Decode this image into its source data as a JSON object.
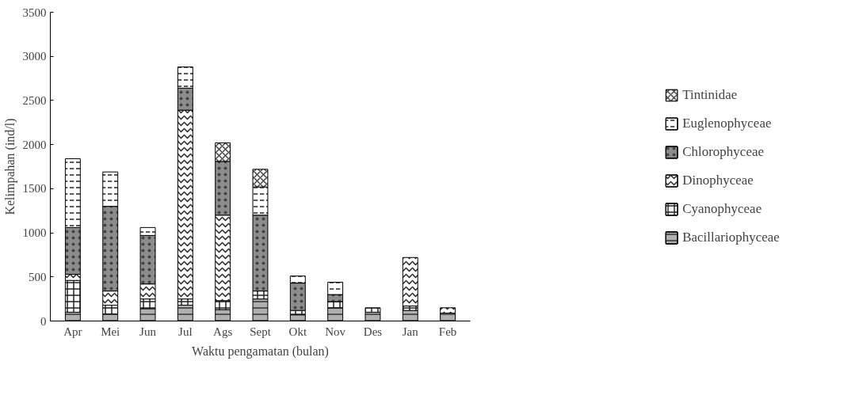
{
  "chart_data": {
    "type": "bar",
    "stacked": true,
    "xlabel": "Waktu pengamatan (bulan)",
    "ylabel": "Kelimpahan (ind/l)",
    "categories": [
      "Apr",
      "Mei",
      "Jun",
      "Jul",
      "Ags",
      "Sept",
      "Okt",
      "Nov",
      "Des",
      "Jan",
      "Feb"
    ],
    "series": [
      {
        "name": "Bacillariophyceae",
        "color": "#b0b0b0",
        "values": [
          100,
          80,
          140,
          180,
          130,
          250,
          70,
          150,
          100,
          120,
          90
        ]
      },
      {
        "name": "Cyanophyceae",
        "color": "#ffffff",
        "values": [
          360,
          100,
          110,
          70,
          100,
          90,
          50,
          70,
          50,
          50,
          0
        ]
      },
      {
        "name": "Dinophyceae",
        "color": "#ffffff",
        "values": [
          70,
          160,
          170,
          2140,
          970,
          0,
          0,
          0,
          0,
          550,
          60
        ]
      },
      {
        "name": "Chlorophyceae",
        "color": "#8c8c8c",
        "values": [
          530,
          960,
          550,
          250,
          610,
          860,
          310,
          80,
          0,
          0,
          0
        ]
      },
      {
        "name": "Euglenophyceae",
        "color": "#ffffff",
        "values": [
          780,
          390,
          90,
          240,
          0,
          320,
          80,
          140,
          0,
          0,
          0
        ]
      },
      {
        "name": "Tintinidae",
        "color": "#ffffff",
        "values": [
          0,
          0,
          0,
          0,
          210,
          200,
          0,
          0,
          0,
          0,
          0
        ]
      }
    ],
    "ylim": [
      0,
      3500
    ],
    "yticks": [
      0,
      500,
      1000,
      1500,
      2000,
      2500,
      3000,
      3500
    ],
    "grid": false,
    "legend": "right"
  }
}
